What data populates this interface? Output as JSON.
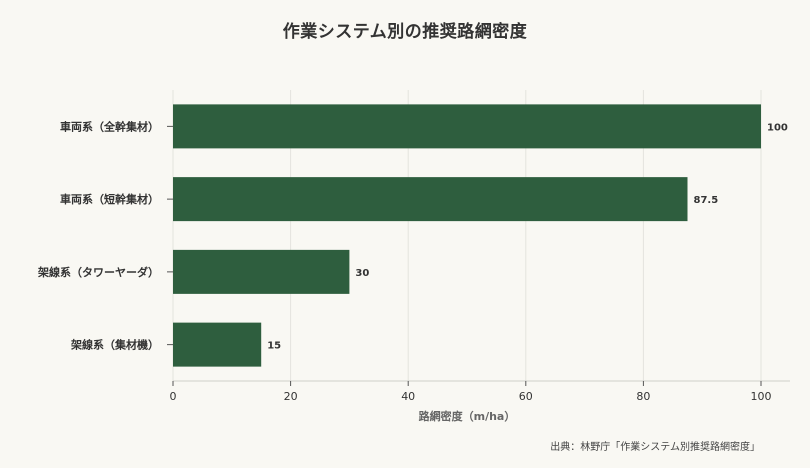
{
  "chart_data": {
    "type": "bar",
    "orientation": "horizontal",
    "title": "作業システム別の推奨路網密度",
    "categories": [
      "車両系（全幹集材）",
      "車両系（短幹集材）",
      "架線系（タワーヤーダ）",
      "架線系（集材機）"
    ],
    "values": [
      100,
      87.5,
      30,
      15
    ],
    "value_labels": [
      "100",
      "87.5",
      "30",
      "15"
    ],
    "xlabel": "路網密度（m/ha）",
    "ylabel": "",
    "xlim": [
      0,
      105
    ],
    "xticks": [
      0,
      20,
      40,
      60,
      80,
      100
    ],
    "grid": "vertical",
    "bar_color": "#2e5e3e",
    "source": "出典：林野庁「作業システム別推奨路網密度」"
  }
}
